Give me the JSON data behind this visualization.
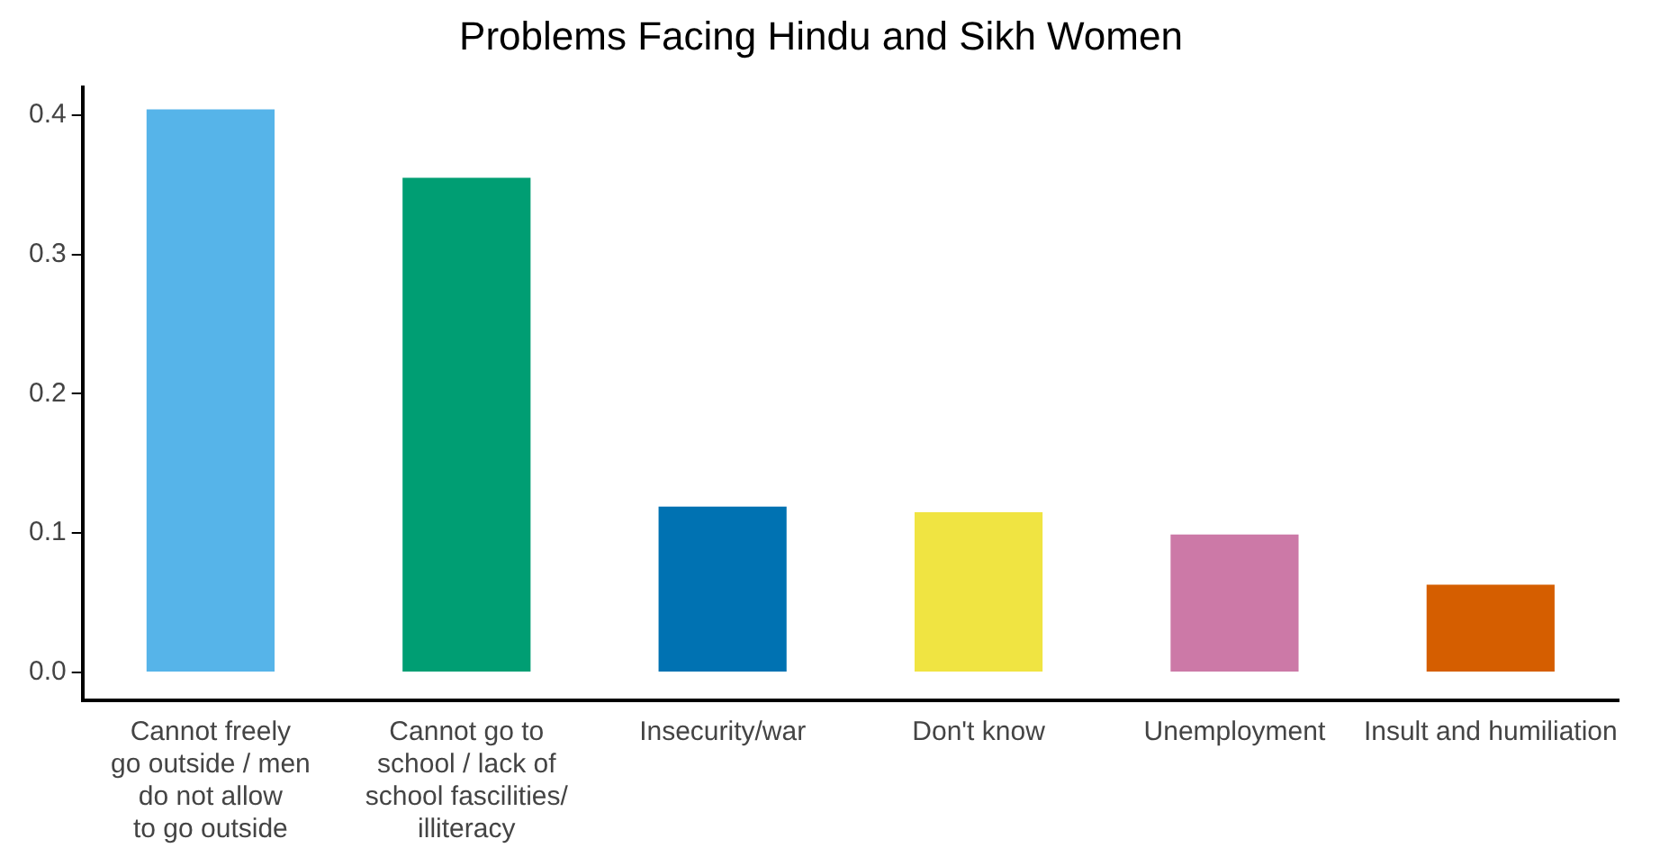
{
  "chart_data": {
    "type": "bar",
    "title": "Problems Facing Hindu and Sikh Women",
    "categories": [
      "Cannot freely\ngo outside / men\ndo not allow\nto go outside",
      "Cannot go to\nschool / lack of\nschool fascilities/\nilliteracy",
      "Insecurity/war",
      "Don't know",
      "Unemployment",
      "Insult and humiliation"
    ],
    "values": [
      0.404,
      0.355,
      0.119,
      0.115,
      0.099,
      0.063
    ],
    "colors": [
      "#56b4e9",
      "#009e73",
      "#0072b2",
      "#f0e442",
      "#cc79a7",
      "#d55e00"
    ],
    "ylim": [
      -0.02,
      0.42
    ],
    "yticks": [
      {
        "value": 0,
        "label": "0.0"
      },
      0.1,
      0.2,
      0.3,
      0.4
    ],
    "grid": false,
    "legend": false
  }
}
